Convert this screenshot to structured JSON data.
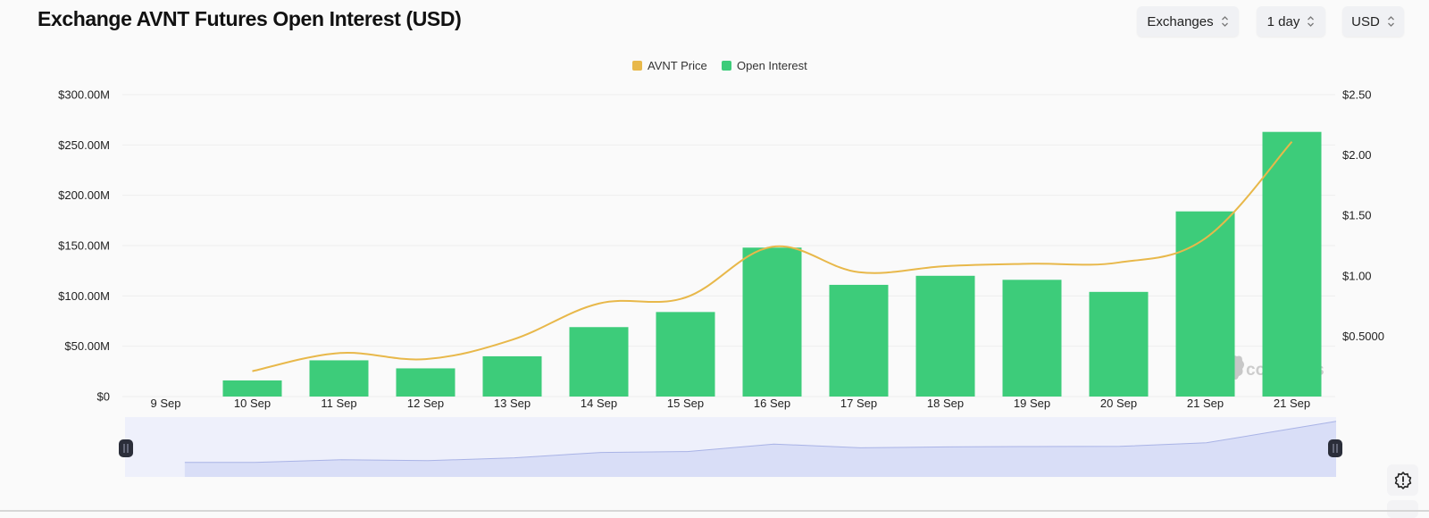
{
  "header": {
    "title": "Exchange AVNT Futures Open Interest (USD)"
  },
  "controls": [
    {
      "label": "Exchanges",
      "icon": "chevron-updown-icon"
    },
    {
      "label": "1 day",
      "icon": "chevron-updown-icon"
    },
    {
      "label": "USD",
      "icon": "chevron-updown-icon"
    }
  ],
  "legend": [
    {
      "label": "AVNT Price",
      "color": "#e8b84a"
    },
    {
      "label": "Open Interest",
      "color": "#3dcc7a"
    }
  ],
  "watermark": "coinglass",
  "settings_icon": "settings-alert-icon",
  "colors": {
    "bar": "#3dcc7a",
    "line": "#e8b84a",
    "grid": "#eeeeee",
    "slider_bg": "#eef0fb",
    "slider_fill": "#d9def7",
    "slider_line": "#a9b3e6",
    "handle": "#2b2e3a"
  },
  "chart_data": {
    "type": "bar",
    "title": "Exchange AVNT Futures Open Interest (USD)",
    "xlabel": "",
    "ylabel": "Open Interest (USD)",
    "y2label": "AVNT Price (USD)",
    "categories": [
      "9 Sep",
      "10 Sep",
      "11 Sep",
      "12 Sep",
      "13 Sep",
      "14 Sep",
      "15 Sep",
      "16 Sep",
      "17 Sep",
      "18 Sep",
      "19 Sep",
      "20 Sep",
      "21 Sep",
      "21 Sep"
    ],
    "series": [
      {
        "name": "Open Interest",
        "type": "bar",
        "axis": "left",
        "unit": "USD millions",
        "values": [
          0,
          16,
          36,
          28,
          40,
          69,
          84,
          148,
          111,
          120,
          116,
          104,
          184,
          263
        ]
      },
      {
        "name": "AVNT Price",
        "type": "line",
        "axis": "right",
        "unit": "USD",
        "values": [
          null,
          0.21,
          0.36,
          0.31,
          0.47,
          0.77,
          0.82,
          1.24,
          1.03,
          1.08,
          1.1,
          1.11,
          1.31,
          2.11
        ]
      }
    ],
    "ylim": [
      0,
      300
    ],
    "y2lim": [
      0,
      2.5
    ],
    "yticks": [
      "$0",
      "$50.00M",
      "$100.00M",
      "$150.00M",
      "$200.00M",
      "$250.00M",
      "$300.00M"
    ],
    "y2ticks": [
      "$0.5000",
      "$1.00",
      "$1.50",
      "$2.00",
      "$2.50"
    ],
    "legend_position": "top-center",
    "grid": true
  }
}
